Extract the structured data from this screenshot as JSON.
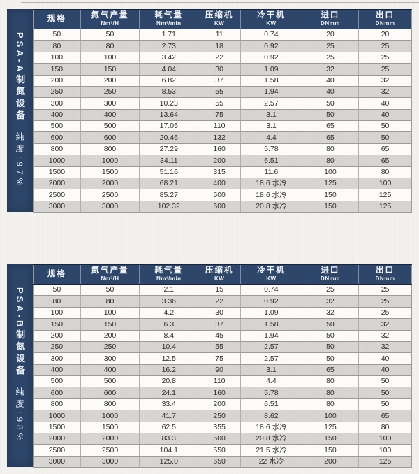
{
  "colors": {
    "navy": "#2d4569",
    "stripe_gray": "#d8d6d4",
    "row_white": "#fcfbf9",
    "page_bg": "#f3f1ee",
    "header_text": "#f2f4f8",
    "body_text": "#2f2f2f"
  },
  "tables": [
    {
      "sidebar_title": "PSA-A制氮设备",
      "sidebar_purity": "纯度:97%",
      "columns": [
        {
          "label": "规格",
          "sub": ""
        },
        {
          "label": "氮气产量",
          "sub": "Nm³/H"
        },
        {
          "label": "耗气量",
          "sub": "Nm³/min"
        },
        {
          "label": "压缩机",
          "sub": "KW"
        },
        {
          "label": "冷干机",
          "sub": "KW"
        },
        {
          "label": "进口",
          "sub": "DNmm"
        },
        {
          "label": "出口",
          "sub": "DNmm"
        }
      ],
      "rows": [
        [
          "50",
          "50",
          "1.71",
          "11",
          "0.74",
          "20",
          "20"
        ],
        [
          "80",
          "80",
          "2.73",
          "18",
          "0.92",
          "25",
          "25"
        ],
        [
          "100",
          "100",
          "3.42",
          "22",
          "0.92",
          "25",
          "25"
        ],
        [
          "150",
          "150",
          "4.04",
          "30",
          "1.09",
          "32",
          "25"
        ],
        [
          "200",
          "200",
          "6.82",
          "37",
          "1.58",
          "40",
          "32"
        ],
        [
          "250",
          "250",
          "8.53",
          "55",
          "1.94",
          "40",
          "32"
        ],
        [
          "300",
          "300",
          "10.23",
          "55",
          "2.57",
          "50",
          "40"
        ],
        [
          "400",
          "400",
          "13.64",
          "75",
          "3.1",
          "50",
          "40"
        ],
        [
          "500",
          "500",
          "17.05",
          "110",
          "3.1",
          "65",
          "50"
        ],
        [
          "600",
          "600",
          "20.46",
          "132",
          "4.4",
          "65",
          "50"
        ],
        [
          "800",
          "800",
          "27.29",
          "160",
          "5.78",
          "80",
          "65"
        ],
        [
          "1000",
          "1000",
          "34.11",
          "200",
          "6.51",
          "80",
          "65"
        ],
        [
          "1500",
          "1500",
          "51.16",
          "315",
          "11.6",
          "100",
          "80"
        ],
        [
          "2000",
          "2000",
          "68.21",
          "400",
          "18.6 水冷",
          "125",
          "100"
        ],
        [
          "2500",
          "2500",
          "85.27",
          "500",
          "18.6 水冷",
          "150",
          "125"
        ],
        [
          "3000",
          "3000",
          "102.32",
          "600",
          "20.8 水冷",
          "150",
          "125"
        ]
      ]
    },
    {
      "sidebar_title": "PSA-B制氮设备",
      "sidebar_purity": "纯度:98%",
      "columns": [
        {
          "label": "规格",
          "sub": ""
        },
        {
          "label": "氮气产量",
          "sub": "Nm³/H"
        },
        {
          "label": "耗气量",
          "sub": "Nm³/min"
        },
        {
          "label": "压缩机",
          "sub": "KW"
        },
        {
          "label": "冷干机",
          "sub": "KW"
        },
        {
          "label": "进口",
          "sub": "DNmm"
        },
        {
          "label": "出口",
          "sub": "DNmm"
        }
      ],
      "rows": [
        [
          "50",
          "50",
          "2.1",
          "15",
          "0.74",
          "25",
          "25"
        ],
        [
          "80",
          "80",
          "3.36",
          "22",
          "0.92",
          "32",
          "25"
        ],
        [
          "100",
          "100",
          "4.2",
          "30",
          "1.09",
          "32",
          "25"
        ],
        [
          "150",
          "150",
          "6.3",
          "37",
          "1.58",
          "50",
          "32"
        ],
        [
          "200",
          "200",
          "8.4",
          "45",
          "1.94",
          "50",
          "32"
        ],
        [
          "250",
          "250",
          "10.4",
          "55",
          "2.57",
          "50",
          "32"
        ],
        [
          "300",
          "300",
          "12.5",
          "75",
          "2.57",
          "50",
          "40"
        ],
        [
          "400",
          "400",
          "16.2",
          "90",
          "3.1",
          "65",
          "40"
        ],
        [
          "500",
          "500",
          "20.8",
          "110",
          "4.4",
          "80",
          "50"
        ],
        [
          "600",
          "600",
          "24.1",
          "160",
          "5.78",
          "80",
          "50"
        ],
        [
          "800",
          "800",
          "33.4",
          "200",
          "6.51",
          "80",
          "50"
        ],
        [
          "1000",
          "1000",
          "41.7",
          "250",
          "8.62",
          "100",
          "65"
        ],
        [
          "1500",
          "1500",
          "62.5",
          "355",
          "18.6 水冷",
          "125",
          "80"
        ],
        [
          "2000",
          "2000",
          "83.3",
          "500",
          "20.8 水冷",
          "150",
          "100"
        ],
        [
          "2500",
          "2500",
          "104.1",
          "550",
          "21.5 水冷",
          "150",
          "100"
        ],
        [
          "3000",
          "3000",
          "125.0",
          "650",
          "22 水冷",
          "200",
          "125"
        ]
      ]
    }
  ]
}
